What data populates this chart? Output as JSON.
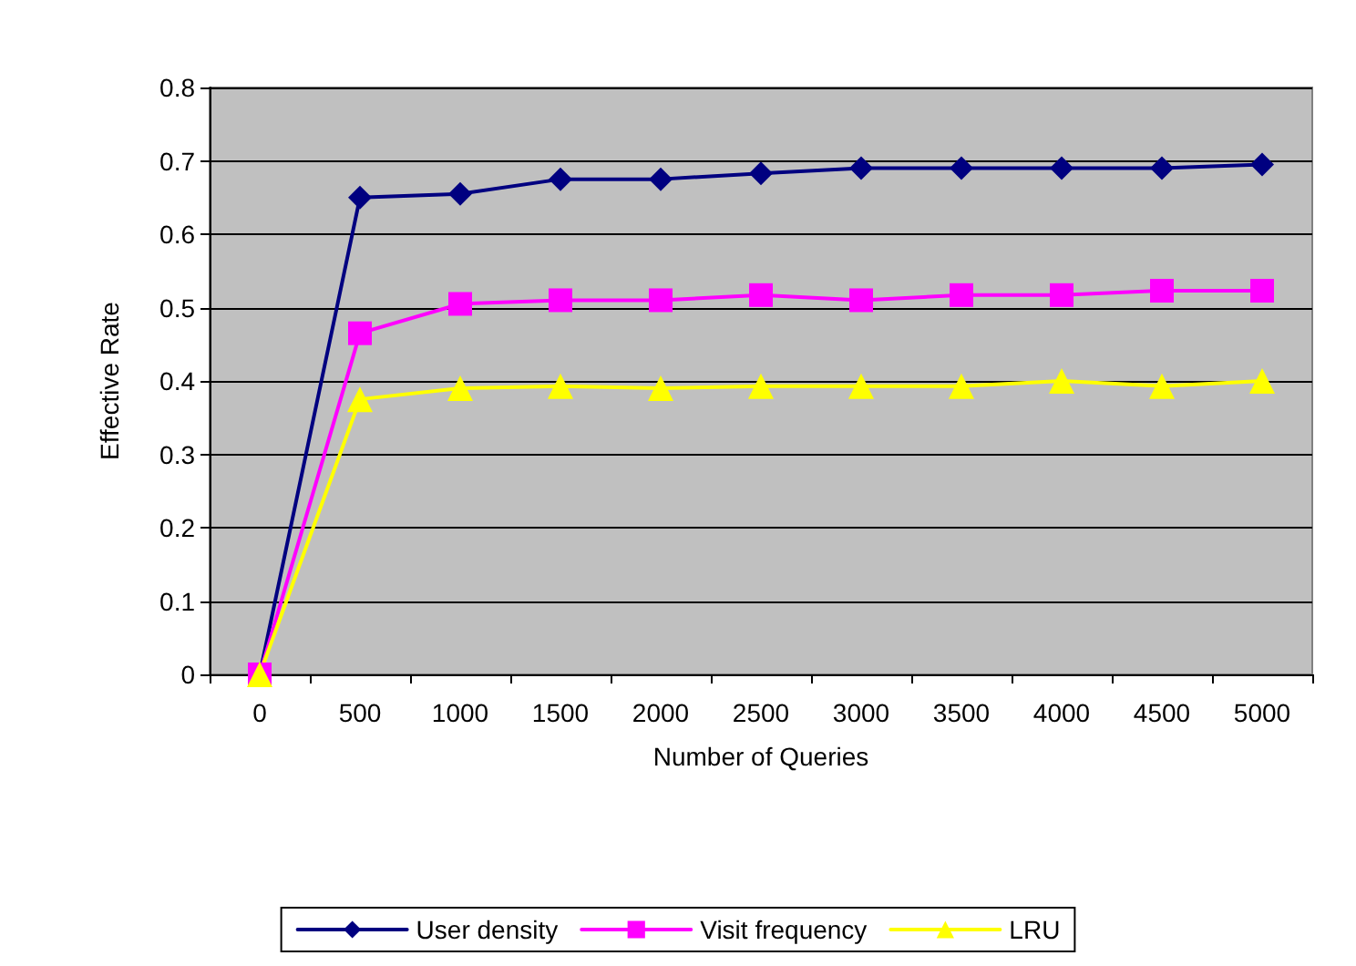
{
  "chart_data": {
    "type": "line",
    "xlabel": "Number of Queries",
    "ylabel": "Effective Rate",
    "categories": [
      "0",
      "500",
      "1000",
      "1500",
      "2000",
      "2500",
      "3000",
      "3500",
      "4000",
      "4500",
      "5000"
    ],
    "series": [
      {
        "name": "User density",
        "color": "#000080",
        "marker": "diamond",
        "values": [
          0,
          0.65,
          0.655,
          0.675,
          0.675,
          0.683,
          0.69,
          0.69,
          0.69,
          0.69,
          0.695
        ]
      },
      {
        "name": "Visit frequency",
        "color": "#ff00ff",
        "marker": "square",
        "values": [
          0,
          0.465,
          0.505,
          0.51,
          0.51,
          0.517,
          0.51,
          0.517,
          0.517,
          0.523,
          0.523
        ]
      },
      {
        "name": "LRU",
        "color": "#ffff00",
        "marker": "triangle",
        "values": [
          0,
          0.375,
          0.39,
          0.393,
          0.39,
          0.393,
          0.393,
          0.393,
          0.4,
          0.393,
          0.4
        ]
      }
    ],
    "ylim": [
      0,
      0.8
    ],
    "yticks": [
      0,
      0.1,
      0.2,
      0.3,
      0.4,
      0.5,
      0.6,
      0.7,
      0.8
    ],
    "grid": "y",
    "legend": "bottom"
  }
}
